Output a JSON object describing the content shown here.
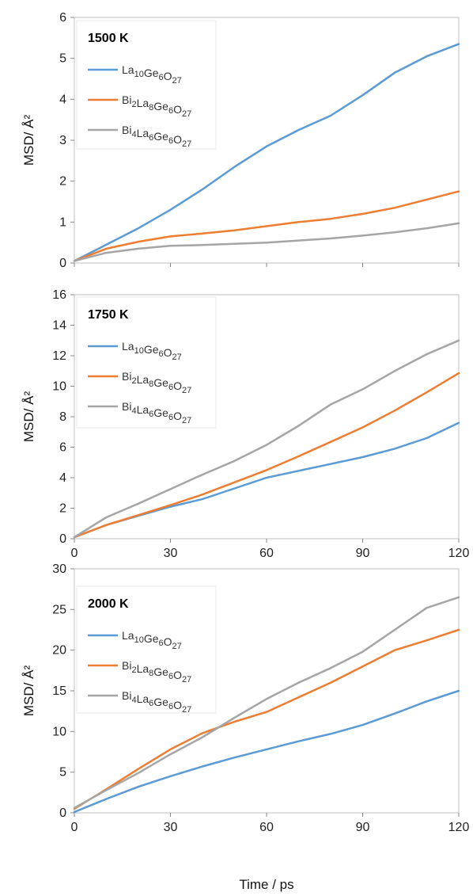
{
  "chart_data": [
    {
      "type": "line",
      "panel_label": "1500 K",
      "ylabel": "MSD/ Å²",
      "xlabel": "",
      "xlim": [
        0,
        120
      ],
      "ylim": [
        0,
        6
      ],
      "xticks": [
        0,
        30,
        60,
        90,
        120
      ],
      "yticks": [
        0,
        1,
        2,
        3,
        4,
        5,
        6
      ],
      "show_x_tick_labels": false,
      "legend_position": "top-left",
      "series": [
        {
          "name": "La10Ge6O27",
          "color": "#5b9bd5",
          "x": [
            0,
            10,
            20,
            30,
            40,
            50,
            60,
            70,
            80,
            90,
            100,
            110,
            120
          ],
          "y": [
            0.05,
            0.45,
            0.85,
            1.3,
            1.8,
            2.35,
            2.85,
            3.25,
            3.6,
            4.1,
            4.65,
            5.05,
            5.35
          ]
        },
        {
          "name": "Bi2La8Ge6O27",
          "color": "#ed7d31",
          "x": [
            0,
            10,
            20,
            30,
            40,
            50,
            60,
            70,
            80,
            90,
            100,
            110,
            120
          ],
          "y": [
            0.05,
            0.35,
            0.52,
            0.65,
            0.72,
            0.8,
            0.9,
            1.0,
            1.08,
            1.2,
            1.35,
            1.55,
            1.75
          ]
        },
        {
          "name": "Bi4La6Ge6O27",
          "color": "#a5a5a5",
          "x": [
            0,
            10,
            20,
            30,
            40,
            50,
            60,
            70,
            80,
            90,
            100,
            110,
            120
          ],
          "y": [
            0.05,
            0.25,
            0.35,
            0.42,
            0.44,
            0.47,
            0.5,
            0.55,
            0.6,
            0.67,
            0.75,
            0.85,
            0.97
          ]
        }
      ]
    },
    {
      "type": "line",
      "panel_label": "1750 K",
      "ylabel": "MSD/ Å²",
      "xlabel": "",
      "xlim": [
        0,
        120
      ],
      "ylim": [
        0,
        16
      ],
      "xticks": [
        0,
        30,
        60,
        90,
        120
      ],
      "yticks": [
        0,
        2,
        4,
        6,
        8,
        10,
        12,
        14,
        16
      ],
      "show_x_tick_labels": true,
      "legend_position": "top-left",
      "series": [
        {
          "name": "La10Ge6O27",
          "color": "#5b9bd5",
          "x": [
            0,
            10,
            20,
            30,
            40,
            50,
            60,
            70,
            80,
            90,
            100,
            110,
            120
          ],
          "y": [
            0.1,
            0.9,
            1.5,
            2.1,
            2.6,
            3.3,
            4.0,
            4.45,
            4.9,
            5.35,
            5.9,
            6.6,
            7.6
          ]
        },
        {
          "name": "Bi2La8Ge6O27",
          "color": "#ed7d31",
          "x": [
            0,
            10,
            20,
            30,
            40,
            50,
            60,
            70,
            80,
            90,
            100,
            110,
            120
          ],
          "y": [
            0.1,
            0.9,
            1.55,
            2.2,
            2.9,
            3.7,
            4.5,
            5.4,
            6.35,
            7.3,
            8.4,
            9.6,
            10.85
          ]
        },
        {
          "name": "Bi4La6Ge6O27",
          "color": "#a5a5a5",
          "x": [
            0,
            10,
            20,
            30,
            40,
            50,
            60,
            70,
            80,
            90,
            100,
            110,
            120
          ],
          "y": [
            0.1,
            1.4,
            2.3,
            3.25,
            4.2,
            5.1,
            6.15,
            7.4,
            8.8,
            9.8,
            11.0,
            12.1,
            13.0
          ]
        }
      ]
    },
    {
      "type": "line",
      "panel_label": "2000 K",
      "ylabel": "MSD/ Å²",
      "xlabel": "Time / ps",
      "xlim": [
        0,
        120
      ],
      "ylim": [
        0,
        30
      ],
      "xticks": [
        0,
        30,
        60,
        90,
        120
      ],
      "yticks": [
        0,
        5,
        10,
        15,
        20,
        25,
        30
      ],
      "show_x_tick_labels": true,
      "legend_position": "top-left",
      "series": [
        {
          "name": "La10Ge6O27",
          "color": "#5b9bd5",
          "x": [
            0,
            10,
            20,
            30,
            40,
            50,
            60,
            70,
            80,
            90,
            100,
            110,
            120
          ],
          "y": [
            0.1,
            1.7,
            3.2,
            4.5,
            5.7,
            6.8,
            7.8,
            8.8,
            9.7,
            10.8,
            12.2,
            13.7,
            15.0
          ]
        },
        {
          "name": "Bi2La8Ge6O27",
          "color": "#ed7d31",
          "x": [
            0,
            10,
            20,
            30,
            40,
            50,
            60,
            70,
            80,
            90,
            100,
            110,
            120
          ],
          "y": [
            0.5,
            2.9,
            5.4,
            7.8,
            9.8,
            11.2,
            12.4,
            14.2,
            16.0,
            18.0,
            20.0,
            21.2,
            22.5
          ]
        },
        {
          "name": "Bi4La6Ge6O27",
          "color": "#a5a5a5",
          "x": [
            0,
            10,
            20,
            30,
            40,
            50,
            60,
            70,
            80,
            90,
            100,
            110,
            120
          ],
          "y": [
            0.6,
            2.8,
            4.9,
            7.2,
            9.3,
            11.7,
            14.0,
            16.0,
            17.8,
            19.8,
            22.5,
            25.2,
            26.5
          ]
        }
      ]
    }
  ]
}
